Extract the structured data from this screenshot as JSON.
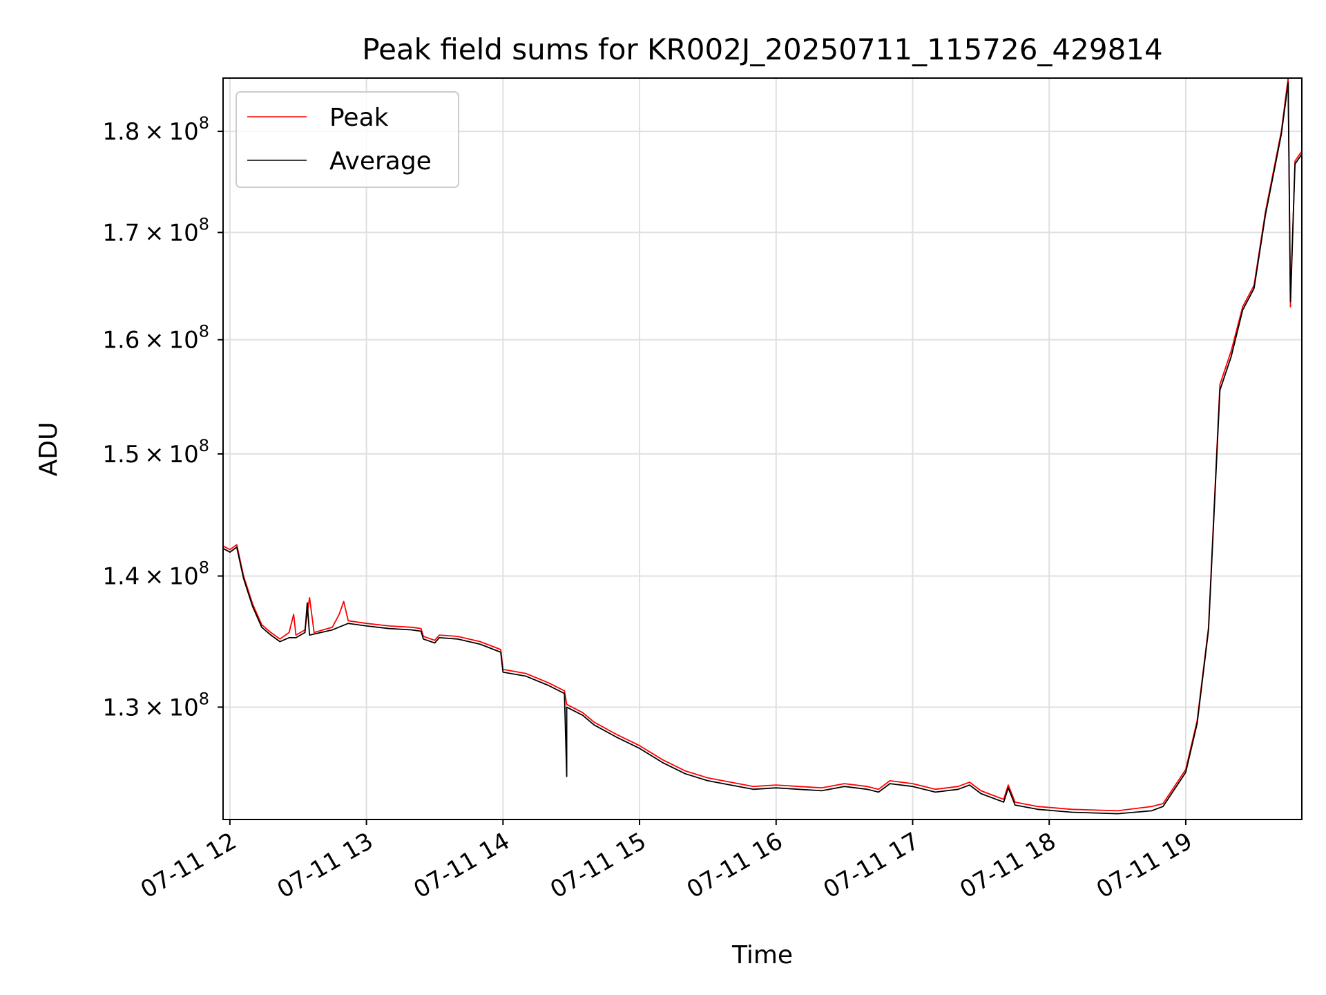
{
  "chart_data": {
    "type": "line",
    "title": "Peak field sums for KR002J_20250711_115726_429814",
    "xlabel": "Time",
    "ylabel": "ADU",
    "y_scale": "log",
    "grid": true,
    "legend_position": "top-left",
    "x_ticks": [
      "07-11 12",
      "07-11 13",
      "07-11 14",
      "07-11 15",
      "07-11 16",
      "07-11 17",
      "07-11 18",
      "07-11 19"
    ],
    "y_ticks": [
      {
        "mantissa": "1.3",
        "exponent": "8",
        "value": 130000000
      },
      {
        "mantissa": "1.4",
        "exponent": "8",
        "value": 140000000
      },
      {
        "mantissa": "1.5",
        "exponent": "8",
        "value": 150000000
      },
      {
        "mantissa": "1.6",
        "exponent": "8",
        "value": 160000000
      },
      {
        "mantissa": "1.7",
        "exponent": "8",
        "value": 170000000
      },
      {
        "mantissa": "1.8",
        "exponent": "8",
        "value": 180000000
      }
    ],
    "times_symbol": "×",
    "xlim": [
      "2025-07-11 11:57",
      "2025-07-11 19:51"
    ],
    "ylim": [
      122000000,
      185500000
    ],
    "series": [
      {
        "name": "Peak",
        "color": "#ff0000",
        "points": [
          [
            "2025-07-11 11:57",
            142400000
          ],
          [
            "2025-07-11 12:00",
            142100000
          ],
          [
            "2025-07-11 12:03",
            142500000
          ],
          [
            "2025-07-11 12:06",
            140000000
          ],
          [
            "2025-07-11 12:10",
            137800000
          ],
          [
            "2025-07-11 12:14",
            136200000
          ],
          [
            "2025-07-11 12:18",
            135600000
          ],
          [
            "2025-07-11 12:22",
            135100000
          ],
          [
            "2025-07-11 12:26",
            135600000
          ],
          [
            "2025-07-11 12:28",
            137000000
          ],
          [
            "2025-07-11 12:29",
            135400000
          ],
          [
            "2025-07-11 12:33",
            135800000
          ],
          [
            "2025-07-11 12:35",
            138300000
          ],
          [
            "2025-07-11 12:37",
            135600000
          ],
          [
            "2025-07-11 12:45",
            136000000
          ],
          [
            "2025-07-11 12:48",
            137000000
          ],
          [
            "2025-07-11 12:50",
            138000000
          ],
          [
            "2025-07-11 12:52",
            136500000
          ],
          [
            "2025-07-11 13:00",
            136300000
          ],
          [
            "2025-07-11 13:10",
            136100000
          ],
          [
            "2025-07-11 13:20",
            136000000
          ],
          [
            "2025-07-11 13:24",
            135900000
          ],
          [
            "2025-07-11 13:25",
            135300000
          ],
          [
            "2025-07-11 13:30",
            135000000
          ],
          [
            "2025-07-11 13:32",
            135400000
          ],
          [
            "2025-07-11 13:40",
            135300000
          ],
          [
            "2025-07-11 13:50",
            134900000
          ],
          [
            "2025-07-11 13:59",
            134300000
          ],
          [
            "2025-07-11 14:00",
            132800000
          ],
          [
            "2025-07-11 14:10",
            132500000
          ],
          [
            "2025-07-11 14:20",
            131800000
          ],
          [
            "2025-07-11 14:27",
            131200000
          ],
          [
            "2025-07-11 14:28",
            130200000
          ],
          [
            "2025-07-11 14:35",
            129600000
          ],
          [
            "2025-07-11 14:40",
            128900000
          ],
          [
            "2025-07-11 14:50",
            128000000
          ],
          [
            "2025-07-11 15:00",
            127200000
          ],
          [
            "2025-07-11 15:10",
            126200000
          ],
          [
            "2025-07-11 15:20",
            125400000
          ],
          [
            "2025-07-11 15:30",
            124900000
          ],
          [
            "2025-07-11 15:40",
            124600000
          ],
          [
            "2025-07-11 15:50",
            124300000
          ],
          [
            "2025-07-11 16:00",
            124400000
          ],
          [
            "2025-07-11 16:10",
            124300000
          ],
          [
            "2025-07-11 16:20",
            124200000
          ],
          [
            "2025-07-11 16:30",
            124500000
          ],
          [
            "2025-07-11 16:40",
            124300000
          ],
          [
            "2025-07-11 16:45",
            124100000
          ],
          [
            "2025-07-11 16:50",
            124700000
          ],
          [
            "2025-07-11 17:00",
            124500000
          ],
          [
            "2025-07-11 17:10",
            124100000
          ],
          [
            "2025-07-11 17:20",
            124300000
          ],
          [
            "2025-07-11 17:25",
            124600000
          ],
          [
            "2025-07-11 17:30",
            124000000
          ],
          [
            "2025-07-11 17:35",
            123700000
          ],
          [
            "2025-07-11 17:40",
            123400000
          ],
          [
            "2025-07-11 17:42",
            124400000
          ],
          [
            "2025-07-11 17:45",
            123200000
          ],
          [
            "2025-07-11 17:55",
            122900000
          ],
          [
            "2025-07-11 18:10",
            122700000
          ],
          [
            "2025-07-11 18:30",
            122600000
          ],
          [
            "2025-07-11 18:45",
            122900000
          ],
          [
            "2025-07-11 18:50",
            123100000
          ],
          [
            "2025-07-11 19:00",
            125500000
          ],
          [
            "2025-07-11 19:05",
            129000000
          ],
          [
            "2025-07-11 19:10",
            136000000
          ],
          [
            "2025-07-11 19:15",
            156000000
          ],
          [
            "2025-07-11 19:20",
            159000000
          ],
          [
            "2025-07-11 19:25",
            163000000
          ],
          [
            "2025-07-11 19:30",
            165000000
          ],
          [
            "2025-07-11 19:35",
            172000000
          ],
          [
            "2025-07-11 19:42",
            180000000
          ],
          [
            "2025-07-11 19:45",
            185500000
          ],
          [
            "2025-07-11 19:46",
            163000000
          ],
          [
            "2025-07-11 19:48",
            177000000
          ],
          [
            "2025-07-11 19:51",
            178000000
          ]
        ]
      },
      {
        "name": "Average",
        "color": "#000000",
        "points": [
          [
            "2025-07-11 11:57",
            142200000
          ],
          [
            "2025-07-11 12:00",
            141900000
          ],
          [
            "2025-07-11 12:03",
            142300000
          ],
          [
            "2025-07-11 12:06",
            139800000
          ],
          [
            "2025-07-11 12:10",
            137600000
          ],
          [
            "2025-07-11 12:14",
            136000000
          ],
          [
            "2025-07-11 12:18",
            135400000
          ],
          [
            "2025-07-11 12:22",
            134900000
          ],
          [
            "2025-07-11 12:26",
            135200000
          ],
          [
            "2025-07-11 12:29",
            135200000
          ],
          [
            "2025-07-11 12:33",
            135600000
          ],
          [
            "2025-07-11 12:34",
            137900000
          ],
          [
            "2025-07-11 12:35",
            135400000
          ],
          [
            "2025-07-11 12:45",
            135800000
          ],
          [
            "2025-07-11 12:52",
            136300000
          ],
          [
            "2025-07-11 13:00",
            136100000
          ],
          [
            "2025-07-11 13:10",
            135900000
          ],
          [
            "2025-07-11 13:20",
            135800000
          ],
          [
            "2025-07-11 13:24",
            135700000
          ],
          [
            "2025-07-11 13:25",
            135100000
          ],
          [
            "2025-07-11 13:30",
            134800000
          ],
          [
            "2025-07-11 13:32",
            135200000
          ],
          [
            "2025-07-11 13:40",
            135100000
          ],
          [
            "2025-07-11 13:50",
            134700000
          ],
          [
            "2025-07-11 13:59",
            134100000
          ],
          [
            "2025-07-11 14:00",
            132600000
          ],
          [
            "2025-07-11 14:10",
            132300000
          ],
          [
            "2025-07-11 14:20",
            131600000
          ],
          [
            "2025-07-11 14:27",
            131000000
          ],
          [
            "2025-07-11 14:28",
            125000000
          ],
          [
            "2025-07-11 14:28",
            130000000
          ],
          [
            "2025-07-11 14:35",
            129400000
          ],
          [
            "2025-07-11 14:40",
            128700000
          ],
          [
            "2025-07-11 14:50",
            127800000
          ],
          [
            "2025-07-11 15:00",
            127000000
          ],
          [
            "2025-07-11 15:10",
            126000000
          ],
          [
            "2025-07-11 15:20",
            125200000
          ],
          [
            "2025-07-11 15:30",
            124700000
          ],
          [
            "2025-07-11 15:40",
            124400000
          ],
          [
            "2025-07-11 15:50",
            124100000
          ],
          [
            "2025-07-11 16:00",
            124200000
          ],
          [
            "2025-07-11 16:10",
            124100000
          ],
          [
            "2025-07-11 16:20",
            124000000
          ],
          [
            "2025-07-11 16:30",
            124300000
          ],
          [
            "2025-07-11 16:40",
            124100000
          ],
          [
            "2025-07-11 16:45",
            123900000
          ],
          [
            "2025-07-11 16:50",
            124500000
          ],
          [
            "2025-07-11 17:00",
            124300000
          ],
          [
            "2025-07-11 17:10",
            123900000
          ],
          [
            "2025-07-11 17:20",
            124100000
          ],
          [
            "2025-07-11 17:25",
            124400000
          ],
          [
            "2025-07-11 17:30",
            123800000
          ],
          [
            "2025-07-11 17:35",
            123500000
          ],
          [
            "2025-07-11 17:40",
            123200000
          ],
          [
            "2025-07-11 17:42",
            124200000
          ],
          [
            "2025-07-11 17:45",
            123000000
          ],
          [
            "2025-07-11 17:55",
            122700000
          ],
          [
            "2025-07-11 18:10",
            122500000
          ],
          [
            "2025-07-11 18:30",
            122400000
          ],
          [
            "2025-07-11 18:45",
            122600000
          ],
          [
            "2025-07-11 18:50",
            122900000
          ],
          [
            "2025-07-11 19:00",
            125300000
          ],
          [
            "2025-07-11 19:05",
            128800000
          ],
          [
            "2025-07-11 19:10",
            135800000
          ],
          [
            "2025-07-11 19:15",
            155500000
          ],
          [
            "2025-07-11 19:20",
            158500000
          ],
          [
            "2025-07-11 19:25",
            162700000
          ],
          [
            "2025-07-11 19:30",
            164700000
          ],
          [
            "2025-07-11 19:35",
            171700000
          ],
          [
            "2025-07-11 19:42",
            179700000
          ],
          [
            "2025-07-11 19:45",
            185000000
          ],
          [
            "2025-07-11 19:46",
            163500000
          ],
          [
            "2025-07-11 19:48",
            176700000
          ],
          [
            "2025-07-11 19:51",
            177700000
          ]
        ]
      }
    ]
  }
}
